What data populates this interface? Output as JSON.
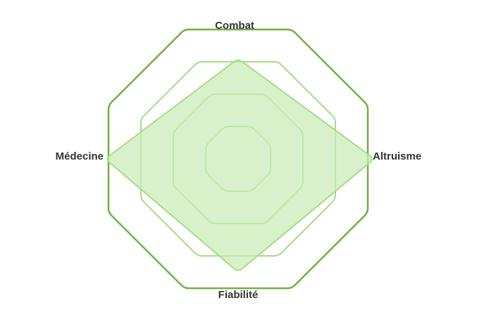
{
  "chart_data": {
    "type": "radar",
    "title": "",
    "axes": [
      "Combat",
      "Altruisme",
      "Fiabilité",
      "Médecine"
    ],
    "series": [
      {
        "values": [
          3.1,
          4.2,
          3.5,
          4.1
        ]
      }
    ],
    "range": [
      0,
      4
    ],
    "rings": [
      1,
      2,
      3,
      4
    ],
    "grid": true,
    "legend": "none",
    "colors": {
      "ring_outer": "#6db33f",
      "ring_inner": "#a5dc86",
      "fill": "#c9ebb3",
      "stroke": "#a5dc86",
      "label": "#333333"
    }
  }
}
